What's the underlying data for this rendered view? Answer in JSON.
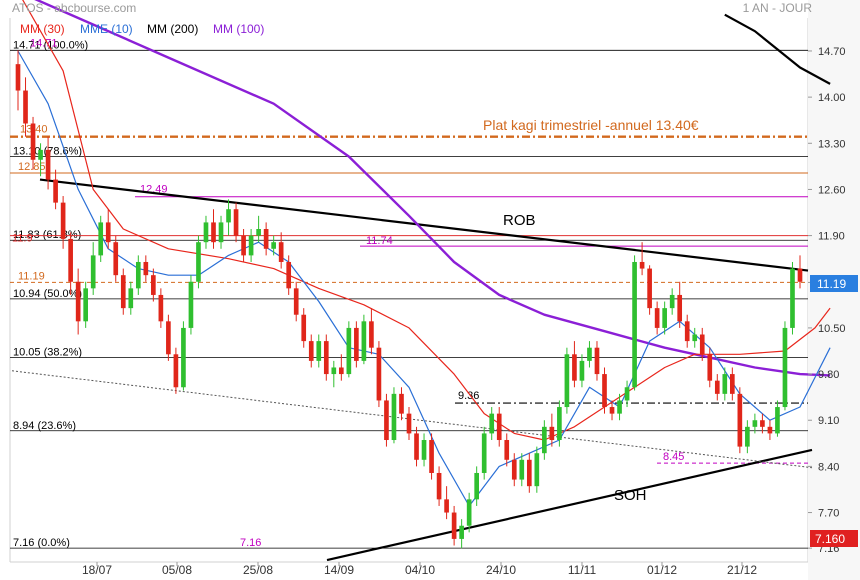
{
  "header": {
    "source": "ATOS - abcbourse.com",
    "period": "1 AN - JOUR"
  },
  "legend": [
    {
      "label": "MM (30)",
      "color": "#e8261c"
    },
    {
      "label": "MME (10)",
      "color": "#2a6fd6"
    },
    {
      "label": "MM (200)",
      "color": "#000000"
    },
    {
      "label": "MM (100)",
      "color": "#8b1fd6"
    }
  ],
  "chart_data": {
    "type": "candlestick",
    "x_ticks": [
      "18/07",
      "05/08",
      "25/08",
      "14/09",
      "04/10",
      "24/10",
      "11/11",
      "01/12",
      "21/12"
    ],
    "y_ticks": [
      14.7,
      14.0,
      13.3,
      12.6,
      11.9,
      11.19,
      10.5,
      9.8,
      9.1,
      8.4,
      7.7,
      7.16
    ],
    "ylim": [
      6.95,
      15.2
    ],
    "current_price": "11.19",
    "low_price_tag": "7.160",
    "fibonacci_levels": [
      {
        "label": "14.71 (100.0%)",
        "value": 14.71
      },
      {
        "label": "13.10 (78.6%)",
        "value": 13.1
      },
      {
        "label": "11.83 (61.8%)",
        "value": 11.83
      },
      {
        "label": "10.94 (50.0%)",
        "value": 10.94
      },
      {
        "label": "10.05 (38.2%)",
        "value": 10.05
      },
      {
        "label": "8.94 (23.6%)",
        "value": 8.94
      },
      {
        "label": "7.16 (0.0%)",
        "value": 7.16
      }
    ],
    "horizontal_levels": [
      {
        "label": "13.40",
        "value": 13.4,
        "color": "#d2691e"
      },
      {
        "label": "12.85",
        "value": 12.85,
        "color": "#d2691e"
      },
      {
        "label": "12.49",
        "value": 12.49,
        "color": "#c000c0"
      },
      {
        "label": "11.9",
        "value": 11.9,
        "color": "#e03030"
      },
      {
        "label": "11.74",
        "value": 11.74,
        "color": "#c000c0"
      },
      {
        "label": "11.19",
        "value": 11.19,
        "color": "#d2691e"
      },
      {
        "label": "9.36",
        "value": 9.36,
        "color": "#000000"
      },
      {
        "label": "8.45",
        "value": 8.45,
        "color": "#c000c0"
      },
      {
        "label": "14.71",
        "value": 14.71,
        "color": "#c000c0"
      },
      {
        "label": "7.16",
        "value": 7.16,
        "color": "#c000c0"
      }
    ],
    "annotations": {
      "kagi": "Plat kagi trimestriel -annuel 13.40€",
      "resistance": "ROB",
      "support": "SOH"
    },
    "candles": [
      [
        14.5,
        14.71,
        13.8,
        14.1
      ],
      [
        14.1,
        14.3,
        13.4,
        13.6
      ],
      [
        13.6,
        13.7,
        12.9,
        13.05
      ],
      [
        13.05,
        13.3,
        12.8,
        13.2
      ],
      [
        13.2,
        13.4,
        12.6,
        12.75
      ],
      [
        12.75,
        12.9,
        12.3,
        12.4
      ],
      [
        12.4,
        12.5,
        11.7,
        11.85
      ],
      [
        11.85,
        11.95,
        11.0,
        11.2
      ],
      [
        11.2,
        11.4,
        10.4,
        10.6
      ],
      [
        10.6,
        11.2,
        10.5,
        11.1
      ],
      [
        11.1,
        11.8,
        11.0,
        11.6
      ],
      [
        11.6,
        12.2,
        11.5,
        12.1
      ],
      [
        12.1,
        12.3,
        11.7,
        11.8
      ],
      [
        11.8,
        11.9,
        11.2,
        11.3
      ],
      [
        11.3,
        11.4,
        10.7,
        10.8
      ],
      [
        10.8,
        11.2,
        10.7,
        11.1
      ],
      [
        11.1,
        11.6,
        11.0,
        11.5
      ],
      [
        11.5,
        11.6,
        11.2,
        11.3
      ],
      [
        11.3,
        11.4,
        10.9,
        11.0
      ],
      [
        11.0,
        11.1,
        10.5,
        10.6
      ],
      [
        10.6,
        10.7,
        10.0,
        10.1
      ],
      [
        10.1,
        10.2,
        9.5,
        9.6
      ],
      [
        9.6,
        10.6,
        9.55,
        10.5
      ],
      [
        10.5,
        11.3,
        10.4,
        11.2
      ],
      [
        11.2,
        11.9,
        11.1,
        11.8
      ],
      [
        11.8,
        12.2,
        11.7,
        12.1
      ],
      [
        12.1,
        12.3,
        11.7,
        11.8
      ],
      [
        11.8,
        12.2,
        11.7,
        12.1
      ],
      [
        12.1,
        12.45,
        11.9,
        12.3
      ],
      [
        12.3,
        12.4,
        11.8,
        11.9
      ],
      [
        11.9,
        12.0,
        11.5,
        11.6
      ],
      [
        11.6,
        12.0,
        11.5,
        11.9
      ],
      [
        11.9,
        12.2,
        11.8,
        12.0
      ],
      [
        12.0,
        12.1,
        11.6,
        11.7
      ],
      [
        11.7,
        11.9,
        11.6,
        11.8
      ],
      [
        11.8,
        11.95,
        11.4,
        11.5
      ],
      [
        11.5,
        11.6,
        11.0,
        11.1
      ],
      [
        11.1,
        11.2,
        10.6,
        10.7
      ],
      [
        10.7,
        10.8,
        10.2,
        10.3
      ],
      [
        10.3,
        10.4,
        9.9,
        10.0
      ],
      [
        10.0,
        10.4,
        9.9,
        10.3
      ],
      [
        10.3,
        10.4,
        9.7,
        9.8
      ],
      [
        9.8,
        10.0,
        9.6,
        9.9
      ],
      [
        9.9,
        10.1,
        9.7,
        9.8
      ],
      [
        9.8,
        10.6,
        9.75,
        10.5
      ],
      [
        10.5,
        10.6,
        9.9,
        10.0
      ],
      [
        10.0,
        10.7,
        9.95,
        10.6
      ],
      [
        10.6,
        10.8,
        10.1,
        10.2
      ],
      [
        10.2,
        10.3,
        9.3,
        9.4
      ],
      [
        9.4,
        9.5,
        8.7,
        8.8
      ],
      [
        8.8,
        9.6,
        8.75,
        9.5
      ],
      [
        9.5,
        9.6,
        9.1,
        9.2
      ],
      [
        9.2,
        9.3,
        8.8,
        8.9
      ],
      [
        8.9,
        9.0,
        8.4,
        8.5
      ],
      [
        8.5,
        8.9,
        8.4,
        8.8
      ],
      [
        8.8,
        8.9,
        8.2,
        8.3
      ],
      [
        8.3,
        8.4,
        7.8,
        7.9
      ],
      [
        7.9,
        8.1,
        7.6,
        7.7
      ],
      [
        7.7,
        7.8,
        7.2,
        7.3
      ],
      [
        7.3,
        7.6,
        7.16,
        7.5
      ],
      [
        7.5,
        8.0,
        7.4,
        7.9
      ],
      [
        7.9,
        8.4,
        7.8,
        8.3
      ],
      [
        8.3,
        9.0,
        8.2,
        8.9
      ],
      [
        8.9,
        9.3,
        8.8,
        9.2
      ],
      [
        9.2,
        9.3,
        8.7,
        8.8
      ],
      [
        8.8,
        8.9,
        8.4,
        8.5
      ],
      [
        8.5,
        8.6,
        8.1,
        8.2
      ],
      [
        8.2,
        8.6,
        8.1,
        8.5
      ],
      [
        8.5,
        8.6,
        8.0,
        8.1
      ],
      [
        8.1,
        8.7,
        8.0,
        8.6
      ],
      [
        8.6,
        9.1,
        8.5,
        9.0
      ],
      [
        9.0,
        9.2,
        8.7,
        8.8
      ],
      [
        8.8,
        9.4,
        8.7,
        9.3
      ],
      [
        9.3,
        10.2,
        9.2,
        10.1
      ],
      [
        10.1,
        10.3,
        9.6,
        9.7
      ],
      [
        9.7,
        10.1,
        9.6,
        10.0
      ],
      [
        10.0,
        10.3,
        9.9,
        10.2
      ],
      [
        10.2,
        10.3,
        9.7,
        9.8
      ],
      [
        9.8,
        9.9,
        9.2,
        9.3
      ],
      [
        9.3,
        9.4,
        9.1,
        9.2
      ],
      [
        9.2,
        9.5,
        9.1,
        9.4
      ],
      [
        9.4,
        9.7,
        9.3,
        9.6
      ],
      [
        9.6,
        11.6,
        9.55,
        11.5
      ],
      [
        11.5,
        11.8,
        11.3,
        11.4
      ],
      [
        11.4,
        11.45,
        10.7,
        10.8
      ],
      [
        10.8,
        10.9,
        10.4,
        10.5
      ],
      [
        10.5,
        10.9,
        10.4,
        10.8
      ],
      [
        10.8,
        11.1,
        10.7,
        11.0
      ],
      [
        11.0,
        11.2,
        10.5,
        10.6
      ],
      [
        10.6,
        10.7,
        10.2,
        10.3
      ],
      [
        10.3,
        10.5,
        10.2,
        10.4
      ],
      [
        10.4,
        10.5,
        10.0,
        10.1
      ],
      [
        10.1,
        10.2,
        9.6,
        9.7
      ],
      [
        9.7,
        9.8,
        9.4,
        9.5
      ],
      [
        9.5,
        9.9,
        9.4,
        9.8
      ],
      [
        9.8,
        9.9,
        9.4,
        9.5
      ],
      [
        9.5,
        9.6,
        8.6,
        8.7
      ],
      [
        8.7,
        9.1,
        8.6,
        9.0
      ],
      [
        9.0,
        9.2,
        8.9,
        9.1
      ],
      [
        9.1,
        9.2,
        8.9,
        9.0
      ],
      [
        9.0,
        9.1,
        8.8,
        8.9
      ],
      [
        8.9,
        9.4,
        8.85,
        9.3
      ],
      [
        9.3,
        10.6,
        9.25,
        10.5
      ],
      [
        10.5,
        11.5,
        10.4,
        11.4
      ],
      [
        11.4,
        11.6,
        11.1,
        11.2
      ]
    ],
    "bands": [
      {
        "name": "MM (100)",
        "points": [
          [
            0,
            15.6
          ],
          [
            8,
            15.2
          ],
          [
            20,
            14.6
          ],
          [
            34,
            13.9
          ],
          [
            44,
            13.1
          ],
          [
            52,
            12.2
          ],
          [
            58,
            11.5
          ],
          [
            64,
            11.0
          ],
          [
            70,
            10.7
          ],
          [
            78,
            10.45
          ],
          [
            86,
            10.2
          ],
          [
            92,
            10.05
          ],
          [
            98,
            9.9
          ],
          [
            104,
            9.8
          ],
          [
            108,
            9.78
          ]
        ]
      },
      {
        "name": "MM (200)",
        "points": [
          [
            94,
            15.25
          ],
          [
            98,
            15.0
          ],
          [
            104,
            14.45
          ],
          [
            108,
            14.2
          ]
        ]
      },
      {
        "name": "MM (30)",
        "points": [
          [
            0,
            15.6
          ],
          [
            6,
            14.4
          ],
          [
            10,
            12.6
          ],
          [
            14,
            12.0
          ],
          [
            20,
            11.7
          ],
          [
            28,
            11.55
          ],
          [
            34,
            11.4
          ],
          [
            40,
            11.1
          ],
          [
            46,
            10.85
          ],
          [
            52,
            10.5
          ],
          [
            58,
            9.8
          ],
          [
            62,
            9.2
          ],
          [
            66,
            8.9
          ],
          [
            70,
            8.8
          ],
          [
            74,
            9.0
          ],
          [
            78,
            9.3
          ],
          [
            82,
            9.6
          ],
          [
            86,
            9.9
          ],
          [
            90,
            10.1
          ],
          [
            96,
            10.1
          ],
          [
            102,
            10.15
          ],
          [
            106,
            10.5
          ],
          [
            108,
            10.8
          ]
        ]
      },
      {
        "name": "MME (10)",
        "points": [
          [
            0,
            14.7
          ],
          [
            4,
            13.9
          ],
          [
            8,
            12.6
          ],
          [
            12,
            11.7
          ],
          [
            16,
            11.4
          ],
          [
            20,
            11.3
          ],
          [
            24,
            11.3
          ],
          [
            28,
            11.6
          ],
          [
            32,
            11.8
          ],
          [
            36,
            11.5
          ],
          [
            40,
            10.9
          ],
          [
            44,
            10.2
          ],
          [
            48,
            10.1
          ],
          [
            52,
            9.6
          ],
          [
            56,
            8.6
          ],
          [
            60,
            7.8
          ],
          [
            64,
            8.4
          ],
          [
            68,
            8.6
          ],
          [
            72,
            8.8
          ],
          [
            76,
            9.6
          ],
          [
            80,
            9.3
          ],
          [
            84,
            10.3
          ],
          [
            88,
            10.6
          ],
          [
            92,
            10.2
          ],
          [
            96,
            9.5
          ],
          [
            100,
            9.1
          ],
          [
            104,
            9.3
          ],
          [
            108,
            10.2
          ]
        ]
      }
    ],
    "trendlines": [
      {
        "points": [
          [
            40.0,
            12.75
          ],
          [
            808.0,
            11.37
          ]
        ],
        "color": "#000000",
        "width": 2.2
      },
      {
        "points": [
          [
            327.0,
            6.98
          ],
          [
            812.0,
            8.65
          ]
        ],
        "color": "#000000",
        "width": 2.2
      },
      {
        "points": [
          [
            12.0,
            9.85
          ],
          [
            812.0,
            8.38
          ]
        ],
        "color": "#555555",
        "width": 1.0,
        "dash": "2,2"
      }
    ]
  }
}
